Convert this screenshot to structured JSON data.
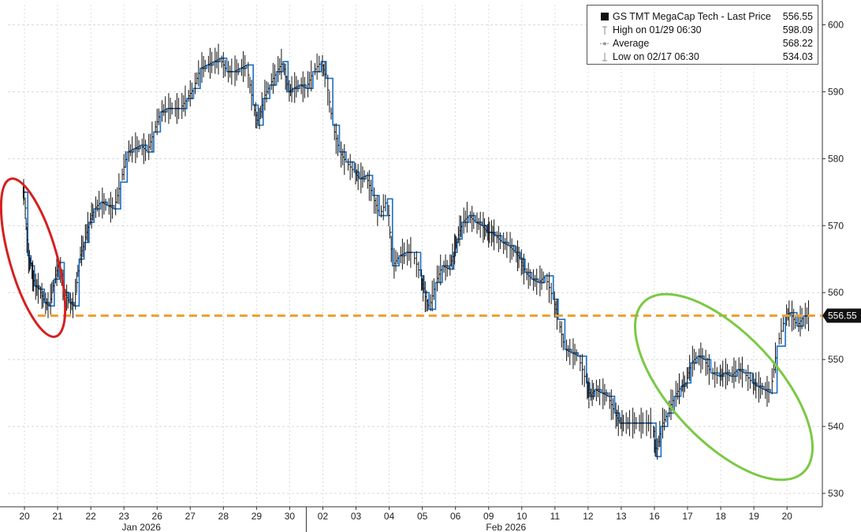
{
  "chart_data": {
    "type": "line",
    "title": "",
    "ylim": [
      528,
      603
    ],
    "y_ticks": [
      530,
      540,
      550,
      560,
      570,
      580,
      590,
      600
    ],
    "y_axis_side": "right",
    "grid": true,
    "days": [
      {
        "label": "20",
        "month": ""
      },
      {
        "label": "21",
        "month": ""
      },
      {
        "label": "22",
        "month": ""
      },
      {
        "label": "23",
        "month": ""
      },
      {
        "label": "26",
        "month": "Jan 2026"
      },
      {
        "label": "27",
        "month": ""
      },
      {
        "label": "28",
        "month": ""
      },
      {
        "label": "29",
        "month": ""
      },
      {
        "label": "30",
        "month": ""
      },
      {
        "label": "02",
        "month": ""
      },
      {
        "label": "03",
        "month": ""
      },
      {
        "label": "04",
        "month": ""
      },
      {
        "label": "05",
        "month": ""
      },
      {
        "label": "06",
        "month": ""
      },
      {
        "label": "09",
        "month": ""
      },
      {
        "label": "10",
        "month": "Feb 2026"
      },
      {
        "label": "11",
        "month": ""
      },
      {
        "label": "12",
        "month": ""
      },
      {
        "label": "13",
        "month": ""
      },
      {
        "label": "16",
        "month": ""
      },
      {
        "label": "17",
        "month": ""
      },
      {
        "label": "18",
        "month": ""
      },
      {
        "label": "19",
        "month": ""
      },
      {
        "label": "20",
        "month": ""
      }
    ],
    "series": [
      {
        "name": "GS TMT MegaCap Tech",
        "color": "#1a6ec2",
        "x": [
          -0.05,
          0.0,
          0.1,
          0.2,
          0.3,
          0.45,
          0.6,
          0.75,
          0.9,
          1.05,
          1.2,
          1.35,
          1.5,
          1.65,
          1.8,
          1.95,
          2.1,
          2.3,
          2.5,
          2.7,
          2.9,
          3.1,
          3.3,
          3.5,
          3.7,
          3.9,
          4.1,
          4.3,
          4.5,
          4.7,
          4.9,
          5.1,
          5.3,
          5.5,
          5.7,
          5.9,
          6.1,
          6.3,
          6.5,
          6.7,
          6.9,
          7.05,
          7.2,
          7.4,
          7.6,
          7.8,
          7.95,
          8.1,
          8.3,
          8.5,
          8.7,
          8.95,
          9.1,
          9.3,
          9.5,
          9.7,
          9.95,
          10.1,
          10.3,
          10.5,
          10.7,
          10.95,
          11.1,
          11.3,
          11.5,
          11.7,
          11.95,
          12.05,
          12.2,
          12.4,
          12.6,
          12.8,
          12.95,
          13.05,
          13.2,
          13.4,
          13.6,
          13.8,
          13.95,
          14.05,
          14.2,
          14.4,
          14.6,
          14.8,
          14.95,
          15.1,
          15.3,
          15.5,
          15.7,
          15.95,
          16.1,
          16.3,
          16.5,
          16.7,
          16.95,
          17.05,
          17.2,
          17.4,
          17.6,
          17.8,
          17.95,
          18.1,
          18.3,
          18.5,
          18.7,
          18.95,
          19.05,
          19.2,
          19.4,
          19.6,
          19.8,
          19.95,
          20.1,
          20.3,
          20.5,
          20.7,
          20.95,
          21.1,
          21.3,
          21.5,
          21.7,
          21.95,
          22.1,
          22.3,
          22.5,
          22.7,
          22.95,
          23.1,
          23.3,
          23.5,
          23.7
        ],
        "values": [
          575.0,
          575.0,
          565.5,
          564.0,
          561.0,
          560.5,
          558.5,
          558.0,
          562.0,
          564.5,
          560.0,
          558.5,
          558.0,
          565.0,
          567.5,
          570.5,
          572.5,
          573.5,
          573.0,
          572.5,
          576.5,
          581.0,
          581.5,
          582.0,
          581.0,
          584.0,
          587.0,
          587.5,
          587.5,
          587.5,
          589.0,
          590.5,
          593.5,
          594.0,
          594.5,
          595.0,
          593.0,
          593.0,
          593.5,
          594.0,
          588.0,
          585.0,
          589.0,
          591.0,
          593.0,
          594.5,
          590.0,
          590.5,
          591.0,
          590.5,
          593.0,
          594.5,
          592.0,
          585.0,
          581.0,
          579.5,
          578.0,
          577.0,
          577.5,
          574.5,
          571.5,
          574.0,
          564.0,
          565.5,
          566.0,
          566.0,
          562.5,
          560.0,
          557.5,
          561.5,
          564.0,
          563.5,
          566.0,
          568.0,
          570.5,
          571.5,
          570.5,
          570.0,
          569.0,
          569.0,
          568.5,
          567.5,
          567.0,
          566.0,
          565.0,
          563.0,
          562.0,
          561.5,
          562.5,
          559.0,
          556.0,
          551.5,
          551.0,
          550.5,
          546.5,
          544.5,
          545.5,
          545.0,
          544.5,
          542.0,
          540.5,
          540.5,
          540.5,
          540.5,
          540.5,
          540.5,
          535.5,
          540.0,
          542.0,
          544.5,
          546.0,
          546.5,
          549.5,
          550.5,
          550.0,
          548.0,
          547.5,
          548.0,
          547.5,
          548.5,
          548.0,
          546.5,
          546.0,
          545.5,
          545.0,
          552.0,
          556.5,
          557.0,
          555.0,
          556.5,
          556.55
        ]
      }
    ],
    "reference_line": {
      "value": 556.55,
      "color": "#f0a030",
      "style": "dashed"
    },
    "last_price_label": "556.55",
    "annotations": [
      {
        "shape": "ellipse",
        "color": "#d42020"
      },
      {
        "shape": "ellipse",
        "color": "#7ac943"
      }
    ],
    "legend": {
      "placement": "top-right",
      "entries": [
        {
          "label": "GS TMT MegaCap Tech - Last Price",
          "value": "556.55"
        },
        {
          "label": "High on 01/29 06:30",
          "value": "598.09"
        },
        {
          "label": "Average",
          "value": "568.22"
        },
        {
          "label": "Low on 02/17 06:30",
          "value": "534.03"
        }
      ]
    }
  }
}
